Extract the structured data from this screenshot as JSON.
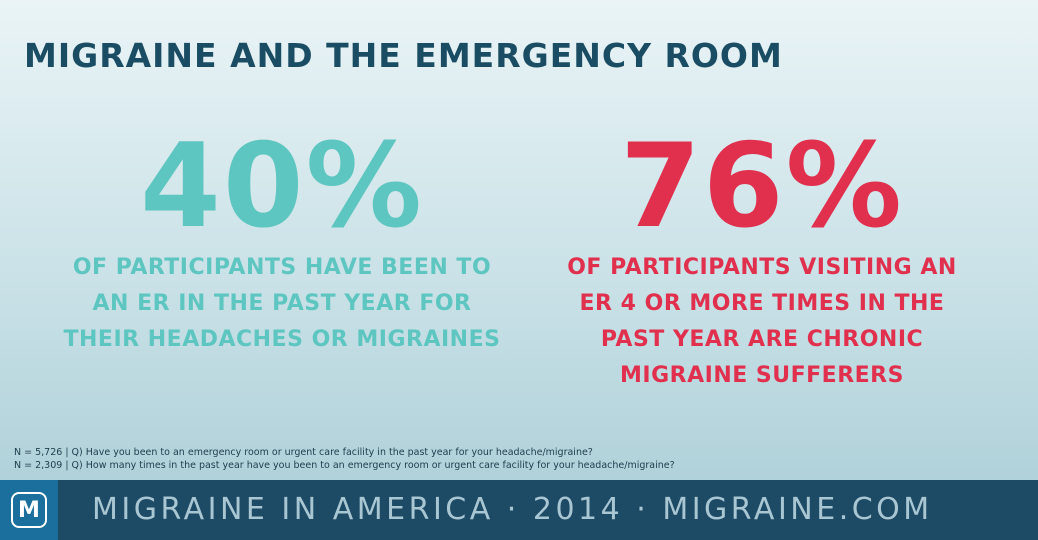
{
  "title": "MIGRAINE AND THE EMERGENCY ROOM",
  "stats": [
    {
      "value": "40%",
      "color": "#5ec6c0",
      "lines": [
        "OF PARTICIPANTS HAVE BEEN TO",
        "AN ER IN THE PAST YEAR FOR",
        "THEIR HEADACHES OR MIGRAINES"
      ]
    },
    {
      "value": "76%",
      "color": "#e1304e",
      "lines": [
        "OF PARTICIPANTS VISITING AN",
        "ER 4 OR MORE TIMES IN THE",
        "PAST YEAR ARE CHRONIC",
        "MIGRAINE SUFFERERS"
      ]
    }
  ],
  "notes": [
    "N = 5,726  |  Q) Have you been to an emergency room or urgent care facility in the past year for your headache/migraine?",
    "N = 2,309  |  Q) How many times in the past year have you been to an emergency room or urgent care facility for your headache/migraine?"
  ],
  "footer": {
    "logo_letter": "M",
    "text": "MIGRAINE IN AMERICA · 2014 · MIGRAINE.COM",
    "background": "#1d4a65",
    "logo_background": "#1a6f9c"
  }
}
